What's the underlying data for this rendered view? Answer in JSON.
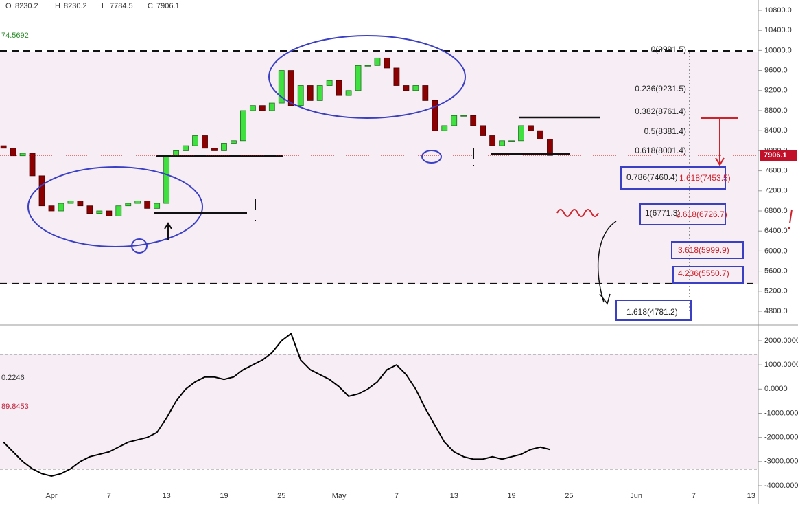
{
  "chart_data": {
    "type": "candlestick",
    "ohlc_labels": [
      "O",
      "H",
      "L",
      "C"
    ],
    "ohlc": [
      8230.2,
      8230.2,
      7784.5,
      7906.1
    ],
    "categories": [
      null,
      null,
      null,
      null,
      null,
      "Apr",
      null,
      null,
      null,
      null,
      null,
      "7",
      null,
      null,
      null,
      null,
      null,
      "13",
      null,
      null,
      null,
      null,
      null,
      "19",
      null,
      null,
      null,
      null,
      null,
      "25",
      null,
      null,
      null,
      null,
      null,
      "May",
      null,
      null,
      null,
      null,
      null,
      "7",
      null,
      null,
      null,
      null,
      null,
      "13",
      null,
      null,
      null,
      null,
      null,
      "19",
      null,
      null,
      null,
      null,
      null,
      "25",
      null,
      null,
      null,
      null,
      null,
      null,
      "Jun",
      null,
      null,
      null,
      null,
      null,
      "7",
      null,
      null,
      null,
      null,
      null,
      "13"
    ],
    "open": [
      8100,
      8050,
      7900,
      7950,
      7500,
      6900,
      6800,
      6950,
      7000,
      6900,
      6750,
      6800,
      6700,
      6900,
      6950,
      7000,
      6850,
      6950,
      7900,
      8000,
      8100,
      8300,
      8050,
      8000,
      8150,
      8200,
      8800,
      8900,
      8800,
      8950,
      9600,
      8900,
      9300,
      9000,
      9300,
      9400,
      9100,
      9200,
      9700,
      9700,
      9850,
      9650,
      9300,
      9200,
      9300,
      9000,
      8400,
      8500,
      8700,
      8700,
      8500,
      8300,
      8100,
      8200,
      8200,
      8500,
      8400,
      8230.2,
      null,
      null,
      null,
      null,
      null,
      null,
      null,
      null,
      null,
      null,
      null,
      null,
      null,
      null,
      null,
      null,
      null,
      null,
      null,
      null,
      null
    ],
    "close": [
      8050,
      7900,
      7950,
      7500,
      6900,
      6800,
      6950,
      7000,
      6900,
      6750,
      6800,
      6700,
      6900,
      6950,
      7000,
      6850,
      6950,
      7900,
      8000,
      8100,
      8300,
      8050,
      8000,
      8150,
      8200,
      8800,
      8900,
      8800,
      8950,
      9600,
      8900,
      9300,
      9000,
      9300,
      9400,
      9100,
      9200,
      9700,
      9700,
      9850,
      9650,
      9300,
      9200,
      9300,
      9000,
      8400,
      8500,
      8700,
      8700,
      8500,
      8300,
      8100,
      8200,
      8200,
      8500,
      8400,
      8230.2,
      7906.1,
      null,
      null,
      null,
      null,
      null,
      null,
      null,
      null,
      null,
      null,
      null,
      null,
      null,
      null,
      null,
      null,
      null,
      null,
      null,
      null,
      null
    ],
    "ylim": [
      4800,
      10800
    ],
    "yticks": [
      {
        "value": 4800,
        "label": "4800.0"
      },
      {
        "value": 5200,
        "label": "5200.0"
      },
      {
        "value": 5600,
        "label": "5600.0"
      },
      {
        "value": 6000,
        "label": "6000.0"
      },
      {
        "value": 6400,
        "label": "6400.0"
      },
      {
        "value": 6800,
        "label": "6800.0"
      },
      {
        "value": 7200,
        "label": "7200.0"
      },
      {
        "value": 7600,
        "label": "7600.0"
      },
      {
        "value": 8000,
        "label": "8000.0"
      },
      {
        "value": 8400,
        "label": "8400.0"
      },
      {
        "value": 8800,
        "label": "8800.0"
      },
      {
        "value": 9200,
        "label": "9200.0"
      },
      {
        "value": 9600,
        "label": "9600.0"
      },
      {
        "value": 10000,
        "label": "10000.0"
      },
      {
        "value": 10400,
        "label": "10400.0"
      },
      {
        "value": 10800,
        "label": "10800.0"
      }
    ],
    "dashed_lines": [
      9991.5,
      5350
    ],
    "up_color": "#3fe03f",
    "down_color": "#8b0000",
    "fib_labels": [
      "0(9991.5)",
      "0.236(9231.5)",
      "0.382(8761.4)",
      "0.5(8381.4)",
      "0.618(8001.4)",
      "0.786(7460.4)",
      "1(6771.3)",
      "1.618(4781.2)"
    ],
    "ext_labels": [
      "1.618(7453.5)",
      "2.618(6726.7)",
      "3.618(5999.9)",
      "4.236(5550.7)"
    ],
    "readouts": [
      74.5692,
      0.2246,
      89.8453
    ],
    "oscillator": {
      "name": null,
      "color": "#000000",
      "values": [
        -2200,
        -2600,
        -3000,
        -3300,
        -3500,
        -3600,
        -3500,
        -3300,
        -3000,
        -2800,
        -2700,
        -2600,
        -2400,
        -2200,
        -2100,
        -2000,
        -1800,
        -1200,
        -500,
        0,
        300,
        500,
        500,
        400,
        500,
        800,
        1000,
        1200,
        1500,
        2000,
        2300,
        1200,
        800,
        600,
        400,
        100,
        -300,
        -200,
        0,
        300,
        800,
        1000,
        600,
        0,
        -800,
        -1500,
        -2200,
        -2600,
        -2800,
        -2900,
        -2900,
        -2800,
        -2900,
        -2800,
        -2700,
        -2500,
        -2400,
        -2500,
        null,
        null,
        null,
        null,
        null,
        null,
        null,
        null,
        null,
        null,
        null,
        null,
        null,
        null,
        null,
        null,
        null,
        null,
        null,
        null,
        null
      ],
      "ylim": [
        -4000,
        2000
      ],
      "yticks": [
        {
          "value": -4000,
          "label": "-4000.0000"
        },
        {
          "value": -3000,
          "label": "-3000.0000"
        },
        {
          "value": -2000,
          "label": "-2000.0000"
        },
        {
          "value": -1000,
          "label": "-1000.0000"
        },
        {
          "value": 0,
          "label": "0.0000"
        },
        {
          "value": 1000,
          "label": "1000.0000"
        },
        {
          "value": 2000,
          "label": "2000.0000"
        }
      ]
    }
  }
}
